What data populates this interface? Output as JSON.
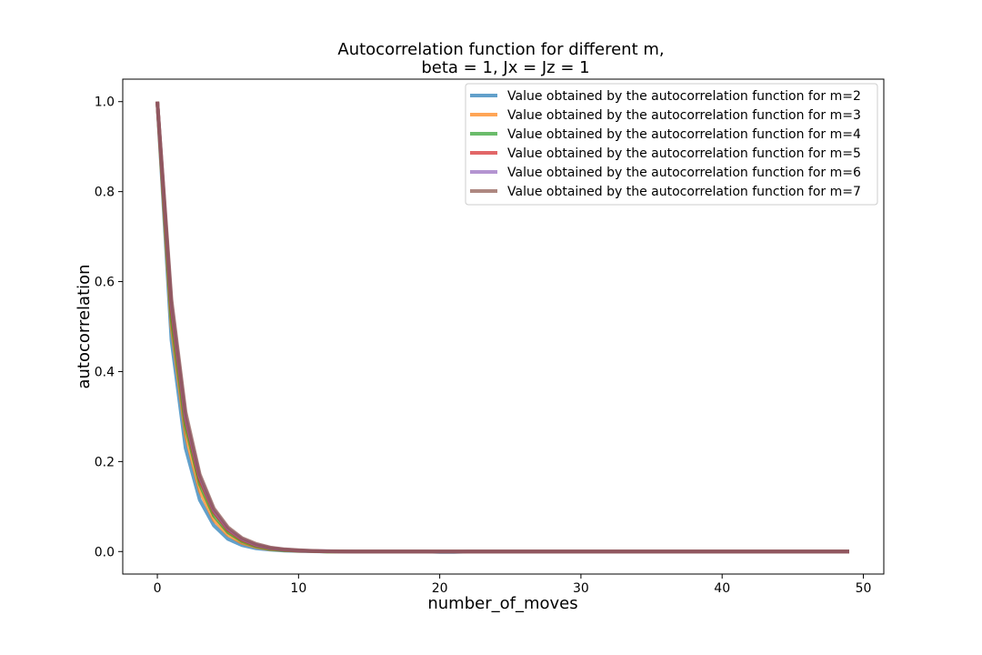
{
  "chart_data": {
    "type": "line",
    "title": "Autocorrelation function for different m,",
    "subtitle": "beta = 1, Jx = Jz = 1",
    "xlabel": "number_of_moves",
    "ylabel": "autocorrelation",
    "xlim": [
      -2.45,
      51.45
    ],
    "ylim": [
      -0.05,
      1.05
    ],
    "xticks": [
      0,
      10,
      20,
      30,
      40,
      50
    ],
    "yticks": [
      0.0,
      0.2,
      0.4,
      0.6,
      0.8,
      1.0
    ],
    "xtick_labels": [
      "0",
      "10",
      "20",
      "30",
      "40",
      "50"
    ],
    "ytick_labels": [
      "0.0",
      "0.2",
      "0.4",
      "0.6",
      "0.8",
      "1.0"
    ],
    "grid": false,
    "legend_position": "top-right",
    "x": [
      0,
      1,
      2,
      3,
      4,
      5,
      6,
      7,
      8,
      9,
      10,
      11,
      12,
      13,
      14,
      15,
      16,
      17,
      18,
      19,
      20,
      21,
      22,
      23,
      24,
      25,
      26,
      27,
      28,
      29,
      30,
      31,
      32,
      33,
      34,
      35,
      36,
      37,
      38,
      39,
      40,
      41,
      42,
      43,
      44,
      45,
      46,
      47,
      48,
      49
    ],
    "series": [
      {
        "name": "Value obtained by the autocorrelation function for m=2",
        "color": "#1f77b4",
        "values": [
          1.0,
          0.47,
          0.23,
          0.115,
          0.058,
          0.028,
          0.014,
          0.007,
          0.004,
          0.002,
          0.001,
          0.0005,
          0.0,
          0.0,
          0.0,
          0.0,
          0.0,
          0.0,
          0.0,
          0.0,
          -0.001,
          -0.001,
          0.0,
          0.0,
          0.0,
          0.0,
          0.0,
          0.0,
          0.0,
          0.0,
          0.0,
          0.0,
          0.0,
          0.0,
          0.0,
          0.0,
          0.0,
          0.0,
          0.0,
          0.0,
          0.0,
          0.0,
          0.0,
          0.0,
          0.0,
          0.0,
          0.0,
          0.0,
          0.0,
          0.0
        ]
      },
      {
        "name": "Value obtained by the autocorrelation function for m=3",
        "color": "#ff7f0e",
        "values": [
          1.0,
          0.5,
          0.26,
          0.135,
          0.07,
          0.037,
          0.019,
          0.01,
          0.005,
          0.003,
          0.0015,
          0.001,
          0.0,
          0.0,
          0.0,
          0.0,
          0.0,
          0.0,
          0.0,
          0.0,
          0.0,
          0.0,
          0.0,
          0.0,
          0.0,
          0.0,
          0.0,
          0.0,
          0.0,
          0.0,
          0.0,
          0.0,
          0.0,
          0.0,
          0.0,
          0.0,
          0.0,
          0.0,
          0.0,
          0.0,
          0.0,
          0.0,
          0.0,
          0.0,
          0.0,
          0.0,
          0.0,
          0.0,
          0.0,
          0.0
        ]
      },
      {
        "name": "Value obtained by the autocorrelation function for m=4",
        "color": "#2ca02c",
        "values": [
          1.0,
          0.52,
          0.28,
          0.15,
          0.08,
          0.043,
          0.023,
          0.012,
          0.006,
          0.003,
          0.002,
          0.001,
          0.0,
          0.0,
          0.0,
          0.0,
          0.0,
          0.0,
          0.0,
          0.0,
          0.0,
          0.0,
          0.0,
          0.0,
          0.0,
          0.0,
          0.0,
          0.0,
          0.0,
          0.0,
          0.0,
          0.0,
          0.0,
          0.0,
          0.0,
          0.0,
          0.0,
          0.0,
          0.0,
          0.0,
          0.0,
          0.0,
          0.0,
          0.0,
          0.0,
          0.0,
          0.0,
          0.0,
          0.0,
          0.0
        ]
      },
      {
        "name": "Value obtained by the autocorrelation function for m=5",
        "color": "#d62728",
        "values": [
          1.0,
          0.54,
          0.295,
          0.16,
          0.088,
          0.048,
          0.026,
          0.014,
          0.0075,
          0.004,
          0.002,
          0.001,
          0.0005,
          0.0,
          0.0,
          0.0,
          0.0,
          0.0,
          0.0,
          0.0,
          0.0,
          0.0,
          0.0,
          0.0,
          0.0,
          0.0,
          0.0,
          0.0,
          0.0,
          0.0,
          0.0,
          0.0,
          0.0,
          0.0,
          0.0,
          0.0,
          0.0,
          0.0,
          0.0,
          0.0,
          0.0,
          0.0,
          0.0,
          0.0,
          0.0,
          0.0,
          0.0,
          0.0,
          0.0,
          0.0
        ]
      },
      {
        "name": "Value obtained by the autocorrelation function for m=6",
        "color": "#9467bd",
        "values": [
          1.0,
          0.55,
          0.3,
          0.167,
          0.092,
          0.051,
          0.028,
          0.015,
          0.008,
          0.0045,
          0.0025,
          0.0013,
          0.0007,
          0.0,
          0.0,
          0.0,
          0.0,
          0.0,
          0.0,
          0.0,
          0.0,
          0.0,
          0.0,
          0.0,
          0.0,
          0.0,
          0.0,
          0.0,
          0.0,
          0.0,
          0.0,
          0.0,
          0.0,
          0.0,
          0.0,
          0.0,
          0.0,
          0.0,
          0.0,
          0.0,
          0.0,
          0.0,
          0.0,
          0.0,
          0.0,
          0.0,
          0.0,
          0.0,
          0.0,
          0.0
        ]
      },
      {
        "name": "Value obtained by the autocorrelation function for m=7",
        "color": "#8c564b",
        "values": [
          1.0,
          0.56,
          0.31,
          0.172,
          0.096,
          0.054,
          0.03,
          0.017,
          0.009,
          0.005,
          0.003,
          0.0016,
          0.0009,
          0.0005,
          0.0,
          0.0,
          0.0,
          0.0,
          0.0,
          0.0,
          0.0,
          0.0,
          0.0,
          0.0,
          0.0,
          0.0,
          0.0,
          0.0,
          0.0,
          0.0,
          0.0,
          0.0,
          0.0,
          0.0,
          0.0,
          0.0,
          0.0,
          0.0,
          0.0,
          0.0,
          0.0,
          0.0,
          0.0,
          0.0,
          0.0,
          0.0,
          0.0,
          0.0,
          0.0,
          0.0
        ]
      }
    ]
  }
}
